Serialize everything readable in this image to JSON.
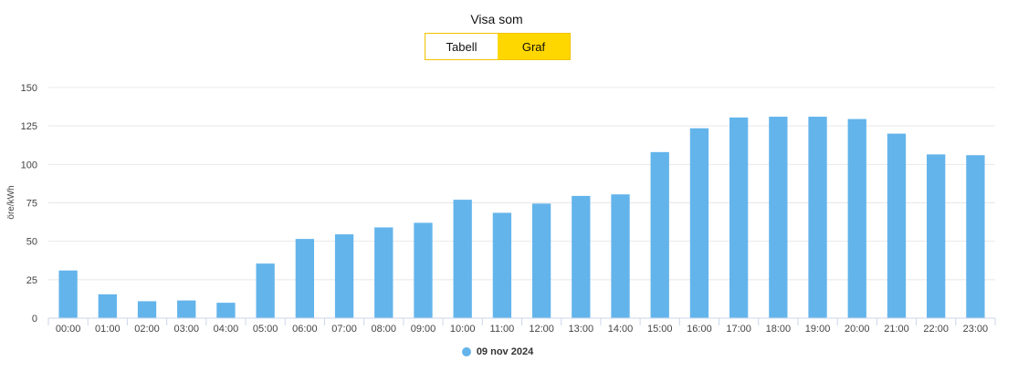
{
  "view_toggle": {
    "title": "Visa som",
    "options": [
      "Tabell",
      "Graf"
    ],
    "selected": "Graf"
  },
  "colors": {
    "bar": "#63b4eb",
    "toggle_active": "#ffd700",
    "toggle_border": "#f2c200",
    "grid": "#e8e8e8"
  },
  "chart_data": {
    "type": "bar",
    "ylabel": "öre/kWh",
    "ylim": [
      0,
      150
    ],
    "yticks": [
      0,
      25,
      50,
      75,
      100,
      125,
      150
    ],
    "grid": true,
    "legend_position": "bottom",
    "categories": [
      "00:00",
      "01:00",
      "02:00",
      "03:00",
      "04:00",
      "05:00",
      "06:00",
      "07:00",
      "08:00",
      "09:00",
      "10:00",
      "11:00",
      "12:00",
      "13:00",
      "14:00",
      "15:00",
      "16:00",
      "17:00",
      "18:00",
      "19:00",
      "20:00",
      "21:00",
      "22:00",
      "23:00"
    ],
    "series": [
      {
        "name": "09 nov 2024",
        "values": [
          31,
          15.5,
          11,
          11.5,
          10,
          35.5,
          51.5,
          54.5,
          59,
          62,
          77,
          68.5,
          74.5,
          79.5,
          80.5,
          108,
          123.5,
          130.5,
          131,
          131,
          129.5,
          120,
          106.5,
          106
        ]
      }
    ]
  }
}
